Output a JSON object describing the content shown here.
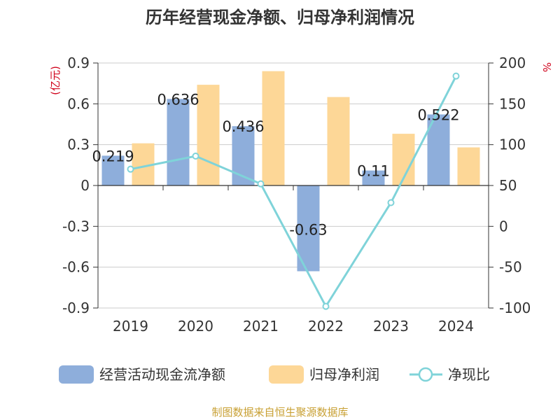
{
  "chart_data": {
    "type": "bar",
    "title": "历年经营现金净额、归母净利润情况",
    "categories": [
      "2019",
      "2020",
      "2021",
      "2022",
      "2023",
      "2024"
    ],
    "y_left": {
      "unit": "(亿元)",
      "ylim": [
        -0.9,
        0.9
      ],
      "ticks": [
        0.9,
        0.6,
        0.3,
        0,
        -0.3,
        -0.6,
        -0.9
      ]
    },
    "y_right": {
      "unit": "%",
      "ylim": [
        -100,
        200
      ],
      "ticks": [
        200,
        150,
        100,
        50,
        0,
        -50,
        -100
      ]
    },
    "series": [
      {
        "name": "经营活动现金流净额",
        "kind": "bar",
        "axis": "left",
        "color": "#8eaedb",
        "values": [
          0.219,
          0.636,
          0.436,
          -0.63,
          0.11,
          0.522
        ],
        "labels": [
          "0.219",
          "0.636",
          "0.436",
          "-0.63",
          "0.11",
          "0.522"
        ]
      },
      {
        "name": "归母净利润",
        "kind": "bar",
        "axis": "left",
        "color": "#fdd797",
        "values": [
          0.31,
          0.74,
          0.84,
          0.65,
          0.38,
          0.28
        ]
      },
      {
        "name": "净现比",
        "kind": "line",
        "axis": "right",
        "color": "#7fd3d9",
        "values": [
          70,
          86,
          52,
          -98,
          29,
          184
        ]
      }
    ],
    "grid": true,
    "legend_position": "bottom"
  },
  "source": "制图数据来自恒生聚源数据库"
}
